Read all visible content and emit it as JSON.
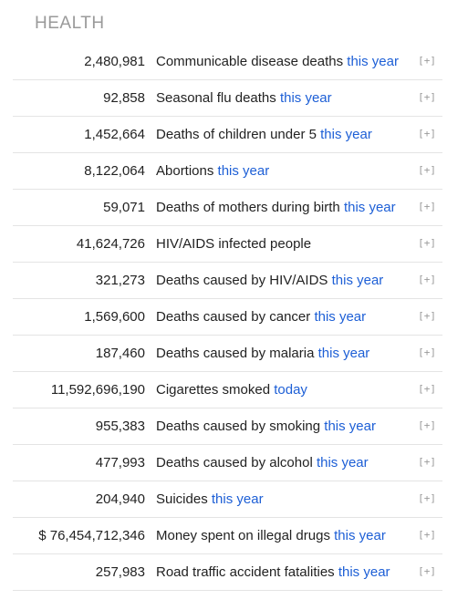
{
  "section": {
    "title": "HEALTH"
  },
  "expand_label": "[+]",
  "colors": {
    "link": "#1d5fd6",
    "muted": "#9a9a9a",
    "divider": "#e4e4e4"
  },
  "rows": [
    {
      "value": "2,480,981",
      "label": "Communicable disease deaths",
      "period": "this year"
    },
    {
      "value": "92,858",
      "label": "Seasonal flu deaths",
      "period": "this year"
    },
    {
      "value": "1,452,664",
      "label": "Deaths of children under 5",
      "period": "this year"
    },
    {
      "value": "8,122,064",
      "label": "Abortions",
      "period": "this year"
    },
    {
      "value": "59,071",
      "label": "Deaths of mothers during birth",
      "period": "this year"
    },
    {
      "value": "41,624,726",
      "label": "HIV/AIDS infected people",
      "period": ""
    },
    {
      "value": "321,273",
      "label": "Deaths caused by HIV/AIDS",
      "period": "this year"
    },
    {
      "value": "1,569,600",
      "label": "Deaths caused by cancer",
      "period": "this year"
    },
    {
      "value": "187,460",
      "label": "Deaths caused by malaria",
      "period": "this year"
    },
    {
      "value": "11,592,696,190",
      "label": "Cigarettes smoked",
      "period": "today"
    },
    {
      "value": "955,383",
      "label": "Deaths caused by smoking",
      "period": "this year"
    },
    {
      "value": "477,993",
      "label": "Deaths caused by alcohol",
      "period": "this year"
    },
    {
      "value": "204,940",
      "label": "Suicides",
      "period": "this year"
    },
    {
      "value": "$ 76,454,712,346",
      "label": "Money spent on illegal drugs",
      "period": "this year"
    },
    {
      "value": "257,983",
      "label": "Road traffic accident fatalities",
      "period": "this year"
    }
  ]
}
